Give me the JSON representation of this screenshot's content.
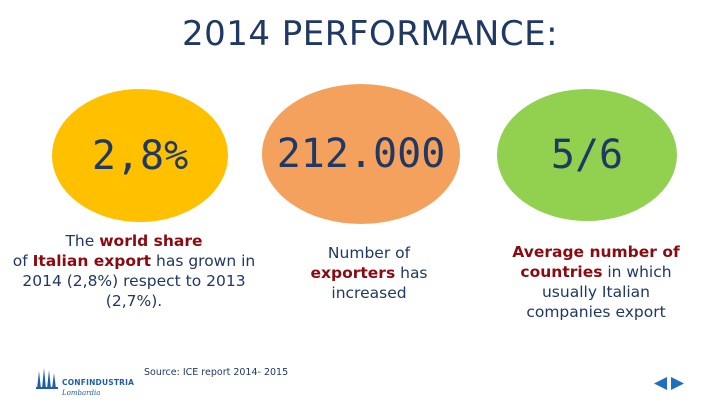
{
  "title": "2014 PERFORMANCE:",
  "stats": [
    {
      "value": "2,8%",
      "color": "#ffc000"
    },
    {
      "value": "212.000",
      "color": "#f4a15e"
    },
    {
      "value": "5/6",
      "color": "#92d050"
    }
  ],
  "desc1": {
    "t1": "The ",
    "h1": "world share",
    "t2": "of ",
    "h2": "Italian export",
    "t3": " has grown in 2014 (2,8%) respect to 2013 (2,7%)."
  },
  "desc2": {
    "t1": "Number of ",
    "h1": "exporters",
    "t2": " has increased"
  },
  "desc3": {
    "h1": "Average number of countries",
    "t1": " in which usually Italian companies export"
  },
  "source": "Source: ICE report 2014- 2015",
  "logo": {
    "name": "CONFINDUSTRIA",
    "sub": "Lombardia"
  },
  "nav": {
    "prev_icon": "triangle-left-icon",
    "next_icon": "triangle-right-icon"
  },
  "colors": {
    "title": "#1f3864",
    "highlight": "#8b0a10",
    "nav": "#1f6fbf"
  }
}
